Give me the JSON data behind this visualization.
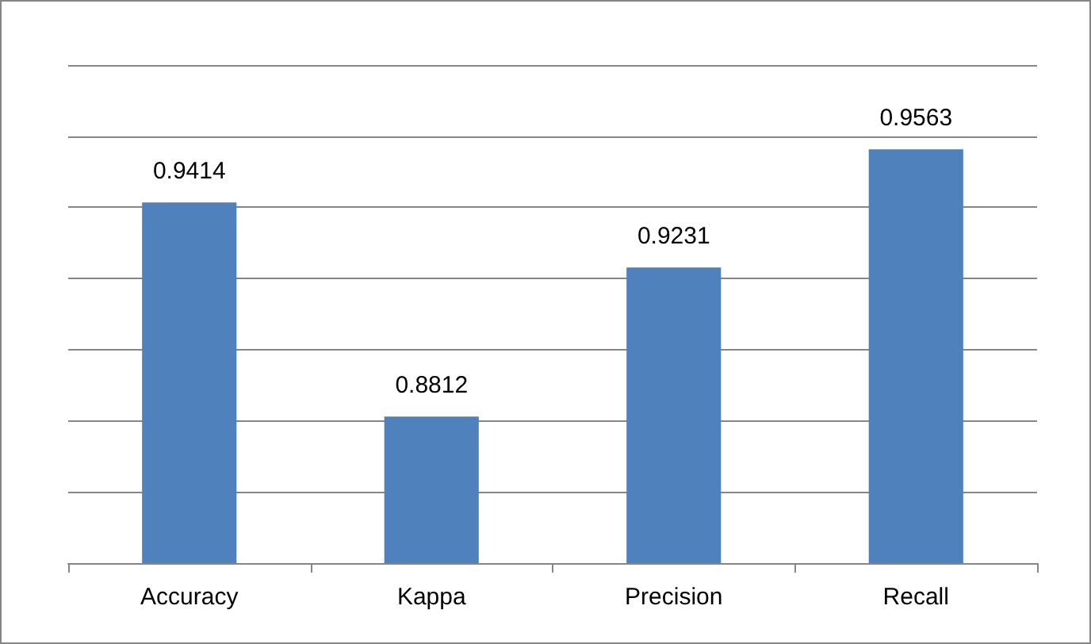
{
  "chart_data": {
    "type": "bar",
    "categories": [
      "Accuracy",
      "Kappa",
      "Precision",
      "Recall"
    ],
    "values": [
      0.9414,
      0.8812,
      0.9231,
      0.9563
    ],
    "color": "#4f81bd",
    "data_labels": true,
    "grid": "y",
    "tick_labels": "x",
    "ylim": [
      0.84,
      0.98
    ],
    "yticks": [
      {
        "value": 0.84,
        "label": null
      },
      {
        "value": 0.86,
        "label": null
      },
      {
        "value": 0.88,
        "label": null
      },
      {
        "value": 0.9,
        "label": null
      },
      {
        "value": 0.92,
        "label": null
      },
      {
        "value": 0.94,
        "label": null
      },
      {
        "value": 0.96,
        "label": null
      },
      {
        "value": 0.98,
        "label": null
      }
    ]
  }
}
